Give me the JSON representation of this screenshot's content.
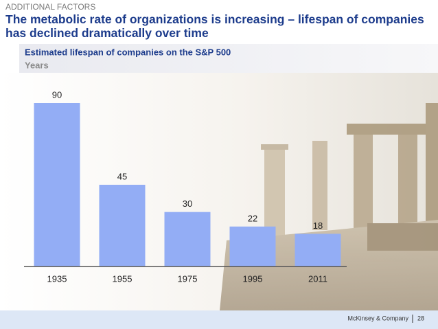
{
  "header": {
    "kicker": "ADDITIONAL FACTORS",
    "title": "The metabolic rate of organizations is increasing – lifespan of companies has declined dramatically over time"
  },
  "chart_data": {
    "type": "bar",
    "title": "Estimated lifespan of companies on the S&P 500",
    "subtitle": "Years",
    "categories": [
      "1935",
      "1955",
      "1975",
      "1995",
      "2011"
    ],
    "values": [
      90,
      45,
      30,
      22,
      18
    ],
    "color": "#93adf5"
  },
  "footer": {
    "company": "McKinsey & Company",
    "page": "28"
  }
}
